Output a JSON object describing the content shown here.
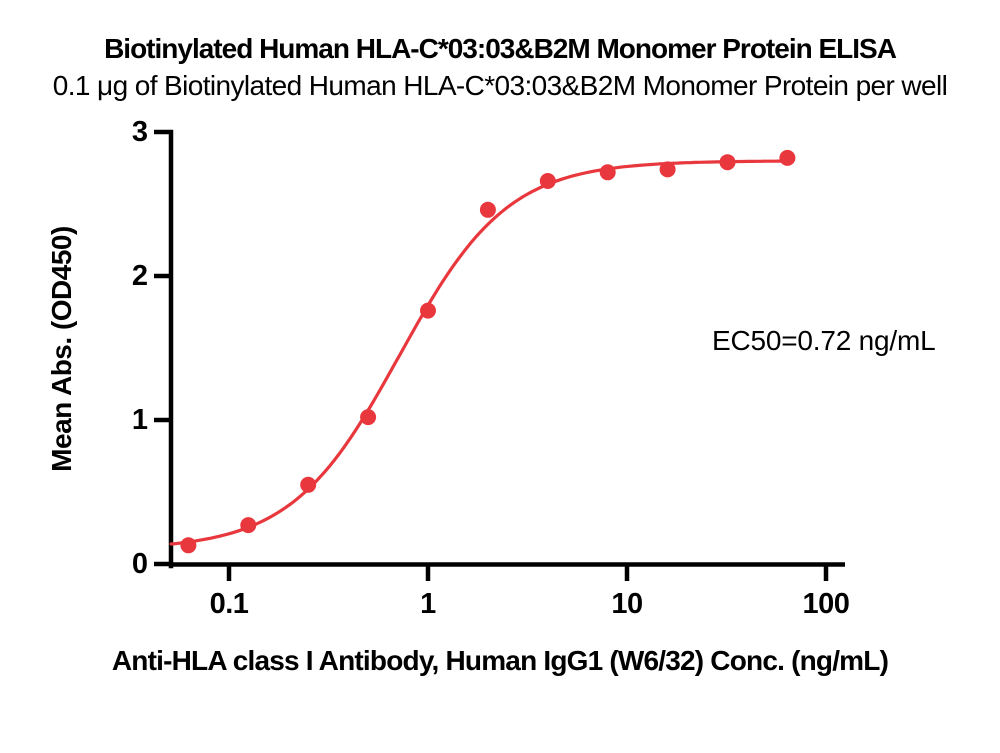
{
  "figure": {
    "title": "Biotinylated Human HLA-C*03:03&B2M Monomer Protein ELISA",
    "subtitle": "0.1 μg of Biotinylated Human HLA-C*03:03&B2M Monomer Protein per well"
  },
  "chart_data": {
    "type": "scatter",
    "title": "Biotinylated Human HLA-C*03:03&B2M Monomer Protein ELISA",
    "subtitle": "0.1 μg of Biotinylated Human HLA-C*03:03&B2M Monomer Protein per well",
    "xlabel": "Anti-HLA class I Antibody, Human IgG1 (W6/32) Conc. (ng/mL)",
    "ylabel": "Mean Abs. (OD450)",
    "x_scale": "log10",
    "xlim": [
      0.05,
      110
    ],
    "ylim": [
      0,
      3
    ],
    "x_ticks": [
      0.1,
      1,
      10,
      100
    ],
    "x_tick_labels": [
      "0.1",
      "1",
      "10",
      "100"
    ],
    "y_ticks": [
      0,
      1,
      2,
      3
    ],
    "y_tick_labels": [
      "0",
      "1",
      "2",
      "3"
    ],
    "grid": false,
    "legend_position": "none",
    "marker": "circle",
    "curve_color": "#e8383e",
    "axis_color": "#000000",
    "series": [
      {
        "x": [
          0.0625,
          0.125,
          0.25,
          0.5,
          1,
          2,
          4,
          8,
          16,
          32,
          64
        ],
        "y": [
          0.13,
          0.27,
          0.55,
          1.02,
          1.76,
          2.46,
          2.66,
          2.72,
          2.74,
          2.79,
          2.82
        ]
      }
    ],
    "fit": {
      "model": "4PL",
      "bottom": 0.1,
      "top": 2.8,
      "ec50": 0.72,
      "hill": 1.6
    },
    "annotation": "EC50=0.72 ng/mL"
  }
}
